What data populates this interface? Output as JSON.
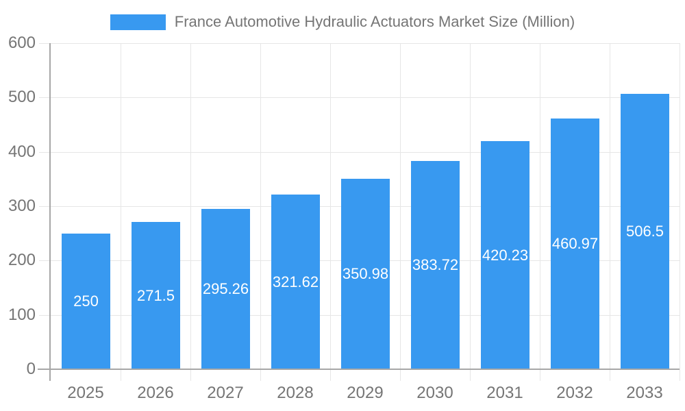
{
  "legend": {
    "label": "France Automotive Hydraulic Actuators Market Size (Million)",
    "swatch_color": "#3899F0"
  },
  "chart_data": {
    "type": "bar",
    "title": "France Automotive Hydraulic Actuators Market Size (Million)",
    "categories": [
      "2025",
      "2026",
      "2027",
      "2028",
      "2029",
      "2030",
      "2031",
      "2032",
      "2033"
    ],
    "series": [
      {
        "name": "France Automotive Hydraulic Actuators Market Size (Million)",
        "values": [
          250,
          271.5,
          295.26,
          321.62,
          350.98,
          383.72,
          420.23,
          460.97,
          506.5
        ]
      }
    ],
    "value_labels": [
      "250",
      "271.5",
      "295.26",
      "321.62",
      "350.98",
      "383.72",
      "420.23",
      "460.97",
      "506.5"
    ],
    "xlabel": "",
    "ylabel": "",
    "ylim": [
      0,
      600
    ],
    "ytick_interval": 100,
    "yticks": [
      "0",
      "100",
      "200",
      "300",
      "400",
      "500",
      "600"
    ],
    "grid": true,
    "legend_position": "top",
    "colors": {
      "bar": "#3899F0",
      "axis_text": "#757575",
      "axis_line": "#a6a6a6",
      "gridline": "#e6e6e6",
      "bar_label": "#ffffff",
      "background": "#ffffff"
    }
  }
}
